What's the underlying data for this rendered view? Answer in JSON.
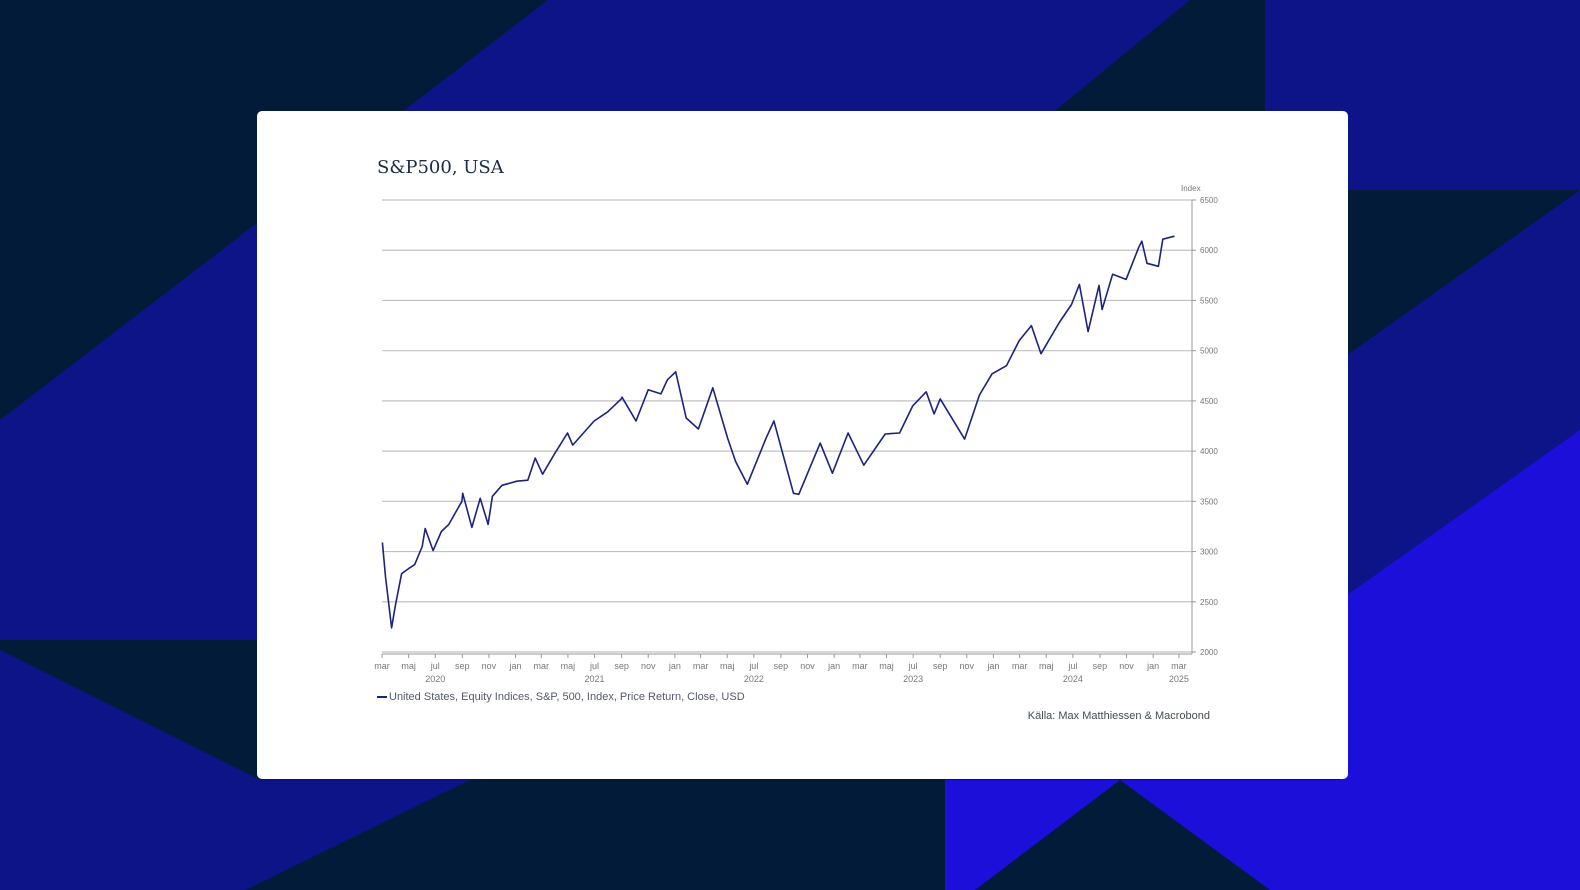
{
  "colors": {
    "background": "#021b38",
    "band_dark": "#0d1487",
    "band_bright": "#1b0fd9",
    "card": "#ffffff",
    "line": "#1a237e",
    "grid": "#c2c2c2"
  },
  "chart_data": {
    "type": "line",
    "title": "S&P500, USA",
    "ylabel": "Index",
    "y_axis_position": "right",
    "ylim": [
      2000,
      6500
    ],
    "y_ticks": [
      2000,
      2500,
      3000,
      3500,
      4000,
      4500,
      5000,
      5500,
      6000,
      6500
    ],
    "grid": true,
    "x_range": [
      "2020-03-01",
      "2025-03-31"
    ],
    "x_month_ticks": [
      {
        "date": "2020-03-01",
        "label": "mar"
      },
      {
        "date": "2020-05-01",
        "label": "maj"
      },
      {
        "date": "2020-07-01",
        "label": "jul"
      },
      {
        "date": "2020-09-01",
        "label": "sep"
      },
      {
        "date": "2020-11-01",
        "label": "nov"
      },
      {
        "date": "2021-01-01",
        "label": "jan"
      },
      {
        "date": "2021-03-01",
        "label": "mar"
      },
      {
        "date": "2021-05-01",
        "label": "maj"
      },
      {
        "date": "2021-07-01",
        "label": "jul"
      },
      {
        "date": "2021-09-01",
        "label": "sep"
      },
      {
        "date": "2021-11-01",
        "label": "nov"
      },
      {
        "date": "2022-01-01",
        "label": "jan"
      },
      {
        "date": "2022-03-01",
        "label": "mar"
      },
      {
        "date": "2022-05-01",
        "label": "maj"
      },
      {
        "date": "2022-07-01",
        "label": "jul"
      },
      {
        "date": "2022-09-01",
        "label": "sep"
      },
      {
        "date": "2022-11-01",
        "label": "nov"
      },
      {
        "date": "2023-01-01",
        "label": "jan"
      },
      {
        "date": "2023-03-01",
        "label": "mar"
      },
      {
        "date": "2023-05-01",
        "label": "maj"
      },
      {
        "date": "2023-07-01",
        "label": "jul"
      },
      {
        "date": "2023-09-01",
        "label": "sep"
      },
      {
        "date": "2023-11-01",
        "label": "nov"
      },
      {
        "date": "2024-01-01",
        "label": "jan"
      },
      {
        "date": "2024-03-01",
        "label": "mar"
      },
      {
        "date": "2024-05-01",
        "label": "maj"
      },
      {
        "date": "2024-07-01",
        "label": "jul"
      },
      {
        "date": "2024-09-01",
        "label": "sep"
      },
      {
        "date": "2024-11-01",
        "label": "nov"
      },
      {
        "date": "2025-01-01",
        "label": "jan"
      },
      {
        "date": "2025-03-01",
        "label": "mar"
      }
    ],
    "x_year_ticks": [
      {
        "date": "2020-07-01",
        "label": "2020"
      },
      {
        "date": "2021-07-01",
        "label": "2021"
      },
      {
        "date": "2022-07-01",
        "label": "2022"
      },
      {
        "date": "2023-07-01",
        "label": "2023"
      },
      {
        "date": "2024-07-01",
        "label": "2024"
      },
      {
        "date": "2025-03-01",
        "label": "2025"
      }
    ],
    "series": [
      {
        "name": "United States, Equity Indices, S&P, 500, Index, Price Return, Close, USD",
        "points": [
          [
            "2020-03-02",
            3090
          ],
          [
            "2020-03-09",
            2750
          ],
          [
            "2020-03-16",
            2500
          ],
          [
            "2020-03-23",
            2240
          ],
          [
            "2020-04-01",
            2470
          ],
          [
            "2020-04-15",
            2780
          ],
          [
            "2020-05-01",
            2830
          ],
          [
            "2020-05-15",
            2870
          ],
          [
            "2020-06-01",
            3050
          ],
          [
            "2020-06-08",
            3230
          ],
          [
            "2020-06-26",
            3010
          ],
          [
            "2020-07-15",
            3200
          ],
          [
            "2020-08-01",
            3270
          ],
          [
            "2020-08-31",
            3500
          ],
          [
            "2020-09-02",
            3580
          ],
          [
            "2020-09-23",
            3240
          ],
          [
            "2020-10-12",
            3530
          ],
          [
            "2020-10-30",
            3270
          ],
          [
            "2020-11-09",
            3550
          ],
          [
            "2020-12-01",
            3660
          ],
          [
            "2021-01-04",
            3700
          ],
          [
            "2021-01-29",
            3710
          ],
          [
            "2021-02-15",
            3930
          ],
          [
            "2021-03-04",
            3770
          ],
          [
            "2021-03-31",
            3970
          ],
          [
            "2021-04-30",
            4180
          ],
          [
            "2021-05-12",
            4060
          ],
          [
            "2021-06-30",
            4300
          ],
          [
            "2021-07-31",
            4390
          ],
          [
            "2021-08-31",
            4520
          ],
          [
            "2021-09-02",
            4537
          ],
          [
            "2021-10-04",
            4300
          ],
          [
            "2021-11-01",
            4610
          ],
          [
            "2021-11-30",
            4570
          ],
          [
            "2021-12-15",
            4710
          ],
          [
            "2022-01-03",
            4790
          ],
          [
            "2022-01-27",
            4330
          ],
          [
            "2022-02-24",
            4220
          ],
          [
            "2022-03-29",
            4630
          ],
          [
            "2022-05-02",
            4130
          ],
          [
            "2022-05-20",
            3900
          ],
          [
            "2022-06-16",
            3670
          ],
          [
            "2022-07-29",
            4130
          ],
          [
            "2022-08-16",
            4300
          ],
          [
            "2022-09-30",
            3580
          ],
          [
            "2022-10-12",
            3570
          ],
          [
            "2022-11-30",
            4080
          ],
          [
            "2022-12-28",
            3780
          ],
          [
            "2023-02-02",
            4180
          ],
          [
            "2023-03-10",
            3860
          ],
          [
            "2023-04-28",
            4170
          ],
          [
            "2023-05-31",
            4180
          ],
          [
            "2023-06-30",
            4450
          ],
          [
            "2023-07-31",
            4590
          ],
          [
            "2023-08-18",
            4370
          ],
          [
            "2023-09-01",
            4520
          ],
          [
            "2023-10-27",
            4120
          ],
          [
            "2023-11-30",
            4560
          ],
          [
            "2023-12-29",
            4770
          ],
          [
            "2024-01-31",
            4850
          ],
          [
            "2024-02-29",
            5100
          ],
          [
            "2024-03-28",
            5250
          ],
          [
            "2024-04-19",
            4970
          ],
          [
            "2024-05-31",
            5280
          ],
          [
            "2024-06-28",
            5460
          ],
          [
            "2024-07-16",
            5660
          ],
          [
            "2024-08-05",
            5190
          ],
          [
            "2024-08-30",
            5650
          ],
          [
            "2024-09-06",
            5410
          ],
          [
            "2024-09-30",
            5760
          ],
          [
            "2024-10-31",
            5710
          ],
          [
            "2024-11-29",
            6030
          ],
          [
            "2024-12-06",
            6090
          ],
          [
            "2024-12-18",
            5870
          ],
          [
            "2025-01-13",
            5840
          ],
          [
            "2025-01-23",
            6110
          ],
          [
            "2025-02-19",
            6140
          ]
        ]
      }
    ],
    "source": "Källa: Max Matthiessen & Macrobond"
  }
}
